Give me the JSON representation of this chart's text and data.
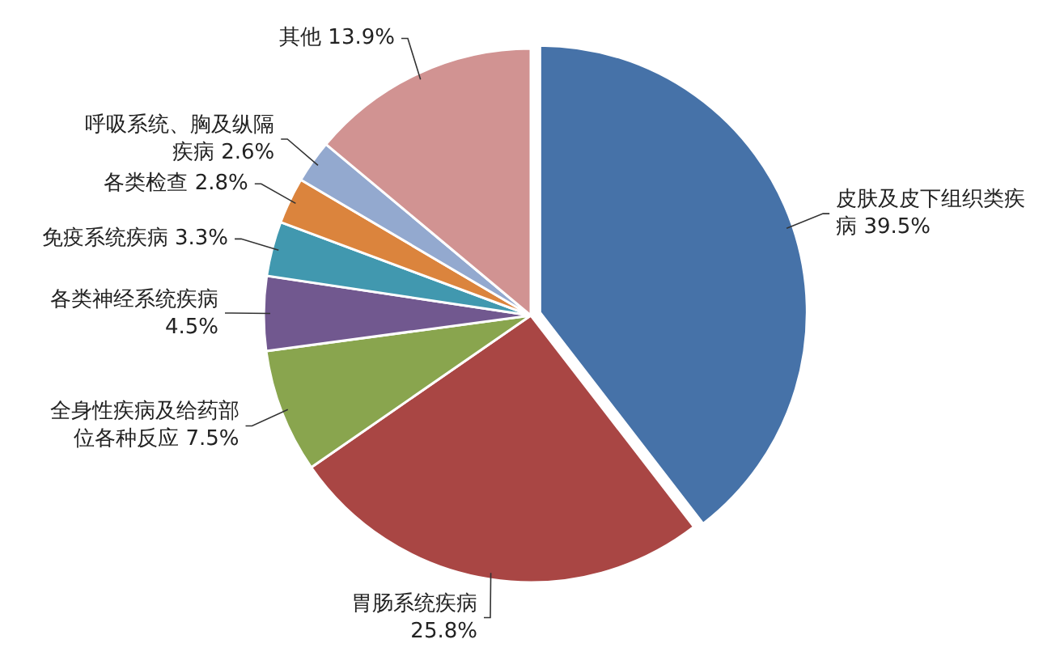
{
  "chart_data": {
    "type": "pie",
    "categories": [
      "皮肤及皮下组织类疾病",
      "胃肠系统疾病",
      "全身性疾病及给药部位各种反应",
      "各类神经系统疾病",
      "免疫系统疾病",
      "各类检查",
      "呼吸系统、胸及纵隔疾病",
      "其他"
    ],
    "values": [
      39.5,
      25.8,
      7.5,
      4.5,
      3.3,
      2.8,
      2.6,
      13.9
    ],
    "colors": [
      "#4672a8",
      "#a94644",
      "#89a54e",
      "#71588f",
      "#4198af",
      "#db843d",
      "#93a9cf",
      "#d19392"
    ],
    "value_labels": [
      "39.5%",
      "25.8%",
      "7.5%",
      "4.5%",
      "3.3%",
      "2.8%",
      "2.6%",
      "13.9%"
    ]
  }
}
